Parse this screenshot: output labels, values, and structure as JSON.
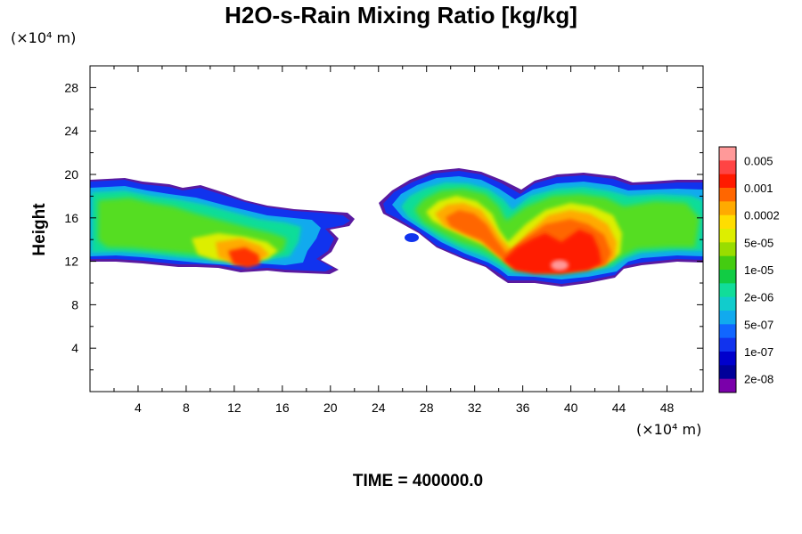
{
  "title": "H2O-s-Rain Mixing Ratio [kg/kg]",
  "time_label": "TIME = 400000.0",
  "y_unit_label": "(×10⁴ m)",
  "x_unit_label": "(×10⁴ m)",
  "chart_data": {
    "type": "heatmap",
    "title": "H2O-s-Rain Mixing Ratio [kg/kg]",
    "ylabel": "Height",
    "xlabel": "",
    "x_unit": "×10⁴ m",
    "y_unit": "×10⁴ m",
    "xlim": [
      0,
      51
    ],
    "ylim": [
      0,
      30
    ],
    "x_ticks": [
      4,
      8,
      12,
      16,
      20,
      24,
      28,
      32,
      36,
      40,
      44,
      48
    ],
    "y_ticks": [
      4,
      8,
      12,
      16,
      20,
      24,
      28
    ],
    "grid": false,
    "legend_position": "right",
    "colorbar_labels": [
      "0.005",
      "0.001",
      "0.0002",
      "5e-05",
      "1e-05",
      "2e-06",
      "5e-07",
      "1e-07",
      "2e-08"
    ],
    "colorbar_colors": [
      "#ff9999",
      "#ff4444",
      "#ff1a00",
      "#ff6600",
      "#ffaa00",
      "#ffdd00",
      "#ddee00",
      "#99dd00",
      "#44cc11",
      "#11cc44",
      "#11dd99",
      "#11cccc",
      "#11aaee",
      "#1166ff",
      "#1133ee",
      "#0000cc",
      "#000099",
      "#7a00aa"
    ],
    "regions": [
      {
        "name": "left-cloud",
        "x_range": [
          0,
          22.5
        ],
        "y_range": [
          10.5,
          19.5
        ],
        "core_level": "0.001",
        "core_x": 13,
        "core_y": 12
      },
      {
        "name": "center-right-cloud",
        "x_range": [
          24,
          51
        ],
        "y_range": [
          9.8,
          19.8
        ],
        "core_level": "0.005",
        "core_x": 39,
        "core_y": 11
      }
    ]
  }
}
